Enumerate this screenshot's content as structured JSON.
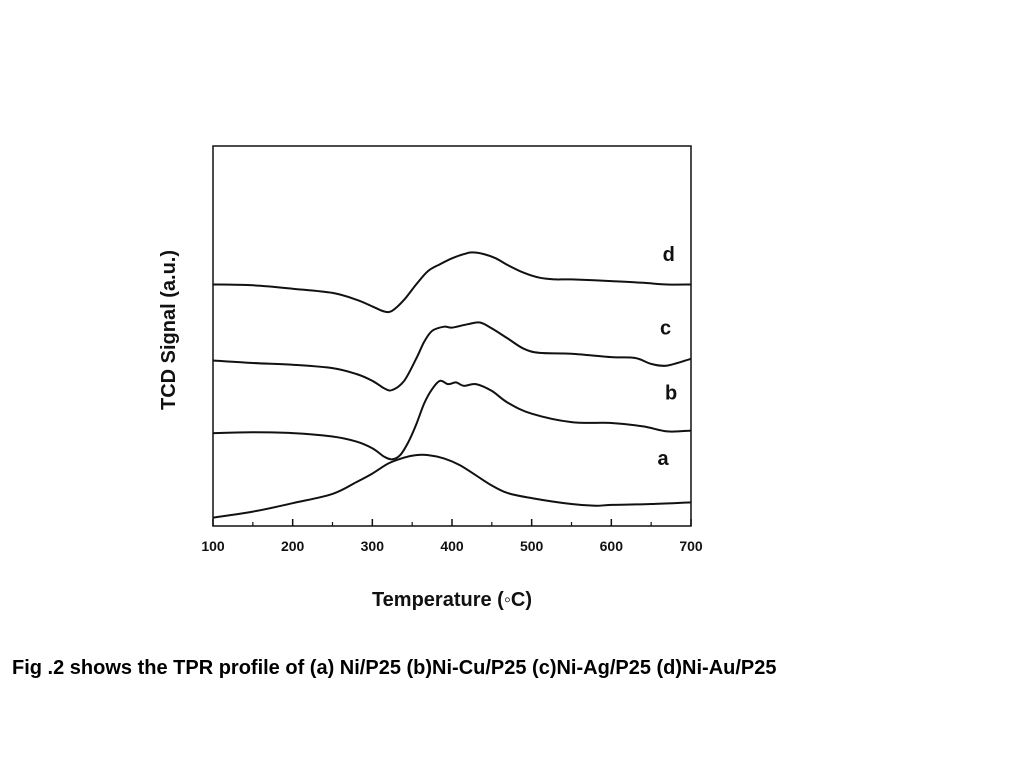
{
  "caption": "Fig .2 shows the TPR profile of (a) Ni/P25 (b)Ni-Cu/P25 (c)Ni-Ag/P25 (d)Ni-Au/P25",
  "chart_data": {
    "type": "line",
    "title": "",
    "xlabel": "Temperature (◦C)",
    "ylabel": "TCD Signal (a.u.)",
    "xlim": [
      100,
      700
    ],
    "ylim": [
      0,
      4.5
    ],
    "x_ticks": [
      100,
      200,
      300,
      400,
      500,
      600,
      700
    ],
    "y_ticks_shown": false,
    "grid": false,
    "legend": "none",
    "series": [
      {
        "name": "a",
        "label_at": [
          665,
          0.72
        ],
        "x": [
          100,
          150,
          200,
          250,
          280,
          300,
          320,
          340,
          355,
          370,
          390,
          410,
          430,
          450,
          470,
          500,
          550,
          580,
          600,
          650,
          700
        ],
        "y": [
          0.1,
          0.17,
          0.27,
          0.38,
          0.52,
          0.62,
          0.74,
          0.81,
          0.84,
          0.84,
          0.8,
          0.72,
          0.6,
          0.48,
          0.39,
          0.33,
          0.26,
          0.24,
          0.25,
          0.26,
          0.28
        ]
      },
      {
        "name": "b",
        "label_at": [
          675,
          1.5
        ],
        "x": [
          100,
          150,
          200,
          250,
          280,
          300,
          315,
          325,
          335,
          345,
          355,
          365,
          375,
          385,
          395,
          405,
          415,
          430,
          450,
          470,
          500,
          550,
          600,
          640,
          670,
          700
        ],
        "y": [
          1.1,
          1.11,
          1.1,
          1.06,
          1.0,
          0.92,
          0.82,
          0.79,
          0.84,
          0.99,
          1.2,
          1.45,
          1.62,
          1.72,
          1.68,
          1.7,
          1.66,
          1.68,
          1.6,
          1.46,
          1.33,
          1.23,
          1.22,
          1.18,
          1.12,
          1.13
        ]
      },
      {
        "name": "c",
        "label_at": [
          668,
          2.27
        ],
        "x": [
          100,
          150,
          200,
          250,
          280,
          300,
          315,
          325,
          340,
          355,
          365,
          375,
          390,
          400,
          420,
          435,
          450,
          470,
          490,
          510,
          550,
          600,
          630,
          650,
          670,
          700
        ],
        "y": [
          1.96,
          1.93,
          1.91,
          1.87,
          1.8,
          1.72,
          1.63,
          1.61,
          1.72,
          1.98,
          2.18,
          2.31,
          2.36,
          2.35,
          2.39,
          2.41,
          2.34,
          2.22,
          2.1,
          2.05,
          2.04,
          2.0,
          1.99,
          1.92,
          1.9,
          1.98
        ]
      },
      {
        "name": "d",
        "label_at": [
          672,
          3.14
        ],
        "x": [
          100,
          150,
          200,
          250,
          280,
          300,
          315,
          325,
          340,
          355,
          370,
          385,
          400,
          415,
          425,
          440,
          455,
          470,
          490,
          510,
          530,
          550,
          600,
          640,
          670,
          700
        ],
        "y": [
          2.86,
          2.85,
          2.81,
          2.76,
          2.68,
          2.6,
          2.54,
          2.55,
          2.68,
          2.86,
          3.02,
          3.1,
          3.17,
          3.22,
          3.24,
          3.22,
          3.17,
          3.09,
          3.0,
          2.94,
          2.92,
          2.92,
          2.9,
          2.88,
          2.86,
          2.86
        ]
      }
    ],
    "style": {
      "line_color": "#111111",
      "background": "#ffffff"
    }
  }
}
